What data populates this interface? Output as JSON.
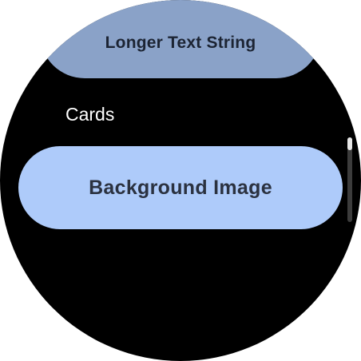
{
  "list": {
    "top_chip_label": "Longer Text String",
    "section_header": "Cards",
    "card_chip_label": "Background Image"
  },
  "colors": {
    "screen_background": "#000000",
    "top_chip_background": "#8aa2c8",
    "card_chip_background": "#aecbfa",
    "chip_text": "#2b3240",
    "header_text": "#ffffff"
  },
  "scroll_indicator": {
    "position_fraction": 0.0,
    "visible_fraction": 0.15
  }
}
